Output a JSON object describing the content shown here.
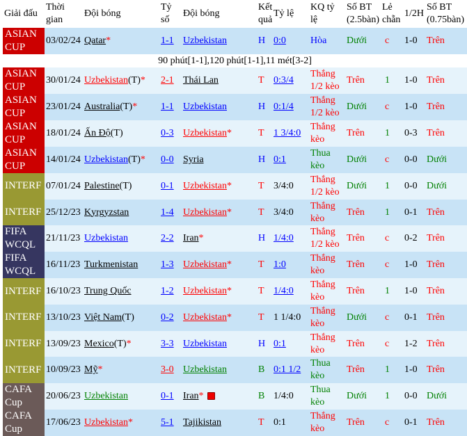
{
  "headers": [
    "Giải đấu",
    "Thời gian",
    "Đội bóng",
    "Tỷ số",
    "Đội bóng",
    "Kết quả",
    "Tỷ lệ",
    "KQ tỷ lệ",
    "Số BT (2.5bàn)",
    "Lẻ chẵn",
    "1/2H",
    "Số BT (0.75bàn)"
  ],
  "colors": {
    "red": "#ff0000",
    "blue": "#0000ff",
    "green": "#008000",
    "black": "#000000"
  },
  "league_colors": {
    "ASIAN CUP": "#cc0000",
    "INTERF": "#999933",
    "FIFA WCQL": "#363660",
    "CAFA Cup": "#6b5a58"
  },
  "note": "90 phút[1-1],120 phút[1-1],11 mét[3-2]",
  "rows": [
    {
      "league": "ASIAN CUP",
      "date": "03/02/24",
      "home": "Qatar",
      "home_suffix": "",
      "home_star": "*",
      "home_color": "black",
      "score": "1-1",
      "score_color": "blue",
      "away": "Uzbekistan",
      "away_star": "",
      "away_color": "blue",
      "result": "H",
      "result_color": "blue",
      "odds": "0:0",
      "odds_link": true,
      "kq": "Hòa",
      "kq_color": "blue",
      "bt": "Dưới",
      "bt_color": "green",
      "lc": "c",
      "lc_color": "red",
      "half": "1-0",
      "bt2": "Trên",
      "bt2_color": "red"
    },
    {
      "league": "ASIAN CUP",
      "date": "30/01/24",
      "home": "Uzbekistan",
      "home_suffix": "(T)",
      "home_star": "*",
      "home_color": "red",
      "score": "2-1",
      "score_color": "red",
      "away": "Thái Lan",
      "away_star": "",
      "away_color": "black",
      "result": "T",
      "result_color": "red",
      "odds": "0:3/4",
      "odds_link": true,
      "kq": "Thắng 1/2 kèo",
      "kq_color": "red",
      "bt": "Trên",
      "bt_color": "red",
      "lc": "1",
      "lc_color": "green",
      "half": "1-0",
      "bt2": "Trên",
      "bt2_color": "red"
    },
    {
      "league": "ASIAN CUP",
      "date": "23/01/24",
      "home": "Australia",
      "home_suffix": "(T)",
      "home_star": "*",
      "home_color": "black",
      "score": "1-1",
      "score_color": "blue",
      "away": "Uzbekistan",
      "away_star": "",
      "away_color": "blue",
      "result": "H",
      "result_color": "blue",
      "odds": "0:1/4",
      "odds_link": true,
      "kq": "Thắng 1/2 kèo",
      "kq_color": "red",
      "bt": "Dưới",
      "bt_color": "green",
      "lc": "c",
      "lc_color": "red",
      "half": "1-0",
      "bt2": "Trên",
      "bt2_color": "red"
    },
    {
      "league": "ASIAN CUP",
      "date": "18/01/24",
      "home": "Ấn Độ",
      "home_suffix": "(T)",
      "home_star": "",
      "home_color": "black",
      "score": "0-3",
      "score_color": "blue",
      "away": "Uzbekistan",
      "away_star": "*",
      "away_color": "red",
      "result": "T",
      "result_color": "red",
      "odds": "1 3/4:0",
      "odds_link": true,
      "kq": "Thắng kèo",
      "kq_color": "red",
      "bt": "Trên",
      "bt_color": "red",
      "lc": "1",
      "lc_color": "green",
      "half": "0-3",
      "bt2": "Trên",
      "bt2_color": "red"
    },
    {
      "league": "ASIAN CUP",
      "date": "14/01/24",
      "home": "Uzbekistan",
      "home_suffix": "(T)",
      "home_star": "*",
      "home_color": "blue",
      "score": "0-0",
      "score_color": "blue",
      "away": "Syria",
      "away_star": "",
      "away_color": "black",
      "result": "H",
      "result_color": "blue",
      "odds": "0:1",
      "odds_link": true,
      "kq": "Thua kèo",
      "kq_color": "green",
      "bt": "Dưới",
      "bt_color": "green",
      "lc": "c",
      "lc_color": "red",
      "half": "0-0",
      "bt2": "Dưới",
      "bt2_color": "green"
    },
    {
      "league": "INTERF",
      "date": "07/01/24",
      "home": "Palestine",
      "home_suffix": "(T)",
      "home_star": "",
      "home_color": "black",
      "score": "0-1",
      "score_color": "blue",
      "away": "Uzbekistan",
      "away_star": "*",
      "away_color": "red",
      "result": "T",
      "result_color": "red",
      "odds": "3/4:0",
      "odds_link": false,
      "kq": "Thắng 1/2 kèo",
      "kq_color": "red",
      "bt": "Dưới",
      "bt_color": "green",
      "lc": "1",
      "lc_color": "green",
      "half": "0-0",
      "bt2": "Dưới",
      "bt2_color": "green"
    },
    {
      "league": "INTERF",
      "date": "25/12/23",
      "home": "Kyrgyzstan",
      "home_suffix": "",
      "home_star": "",
      "home_color": "black",
      "score": "1-4",
      "score_color": "blue",
      "away": "Uzbekistan",
      "away_star": "*",
      "away_color": "red",
      "result": "T",
      "result_color": "red",
      "odds": "3/4:0",
      "odds_link": false,
      "kq": "Thắng kèo",
      "kq_color": "red",
      "bt": "Trên",
      "bt_color": "red",
      "lc": "1",
      "lc_color": "green",
      "half": "0-1",
      "bt2": "Trên",
      "bt2_color": "red"
    },
    {
      "league": "FIFA WCQL",
      "date": "21/11/23",
      "home": "Uzbekistan",
      "home_suffix": "",
      "home_star": "",
      "home_color": "blue",
      "score": "2-2",
      "score_color": "blue",
      "away": "Iran",
      "away_star": "*",
      "away_color": "black",
      "result": "H",
      "result_color": "blue",
      "odds": "1/4:0",
      "odds_link": true,
      "kq": "Thắng 1/2 kèo",
      "kq_color": "red",
      "bt": "Trên",
      "bt_color": "red",
      "lc": "c",
      "lc_color": "red",
      "half": "0-2",
      "bt2": "Trên",
      "bt2_color": "red"
    },
    {
      "league": "FIFA WCQL",
      "date": "16/11/23",
      "home": "Turkmenistan",
      "home_suffix": "",
      "home_star": "",
      "home_color": "black",
      "score": "1-3",
      "score_color": "blue",
      "away": "Uzbekistan",
      "away_star": "*",
      "away_color": "red",
      "result": "T",
      "result_color": "red",
      "odds": "1:0",
      "odds_link": true,
      "kq": "Thắng kèo",
      "kq_color": "red",
      "bt": "Trên",
      "bt_color": "red",
      "lc": "c",
      "lc_color": "red",
      "half": "1-0",
      "bt2": "Trên",
      "bt2_color": "red"
    },
    {
      "league": "INTERF",
      "date": "16/10/23",
      "home": "Trung Quốc",
      "home_suffix": "",
      "home_star": "",
      "home_color": "black",
      "score": "1-2",
      "score_color": "blue",
      "away": "Uzbekistan",
      "away_star": "*",
      "away_color": "red",
      "result": "T",
      "result_color": "red",
      "odds": "1/4:0",
      "odds_link": true,
      "kq": "Thắng kèo",
      "kq_color": "red",
      "bt": "Trên",
      "bt_color": "red",
      "lc": "1",
      "lc_color": "green",
      "half": "1-0",
      "bt2": "Trên",
      "bt2_color": "red"
    },
    {
      "league": "INTERF",
      "date": "13/10/23",
      "home": "Việt Nam",
      "home_suffix": "(T)",
      "home_star": "",
      "home_color": "black",
      "score": "0-2",
      "score_color": "blue",
      "away": "Uzbekistan",
      "away_star": "*",
      "away_color": "red",
      "result": "T",
      "result_color": "red",
      "odds": "1 1/4:0",
      "odds_link": false,
      "kq": "Thắng kèo",
      "kq_color": "red",
      "bt": "Dưới",
      "bt_color": "green",
      "lc": "c",
      "lc_color": "red",
      "half": "0-1",
      "bt2": "Trên",
      "bt2_color": "red"
    },
    {
      "league": "INTERF",
      "date": "13/09/23",
      "home": "Mexico",
      "home_suffix": "(T)",
      "home_star": "*",
      "home_color": "black",
      "score": "3-3",
      "score_color": "blue",
      "away": "Uzbekistan",
      "away_star": "",
      "away_color": "blue",
      "result": "H",
      "result_color": "blue",
      "odds": "0:1",
      "odds_link": true,
      "kq": "Thắng kèo",
      "kq_color": "red",
      "bt": "Trên",
      "bt_color": "red",
      "lc": "c",
      "lc_color": "red",
      "half": "1-2",
      "bt2": "Trên",
      "bt2_color": "red"
    },
    {
      "league": "INTERF",
      "date": "10/09/23",
      "home": "Mỹ",
      "home_suffix": "",
      "home_star": "*",
      "home_color": "black",
      "score": "3-0",
      "score_color": "red",
      "away": "Uzbekistan",
      "away_star": "",
      "away_color": "green",
      "result": "B",
      "result_color": "green",
      "odds": "0:1 1/2",
      "odds_link": true,
      "kq": "Thua kèo",
      "kq_color": "green",
      "bt": "Trên",
      "bt_color": "red",
      "lc": "1",
      "lc_color": "green",
      "half": "1-0",
      "bt2": "Trên",
      "bt2_color": "red"
    },
    {
      "league": "CAFA Cup",
      "date": "20/06/23",
      "home": "Uzbekistan",
      "home_suffix": "",
      "home_star": "",
      "home_color": "green",
      "score": "0-1",
      "score_color": "blue",
      "away": "Iran",
      "away_star": "*",
      "away_color": "black",
      "away_card": true,
      "result": "B",
      "result_color": "green",
      "odds": "1/4:0",
      "odds_link": false,
      "kq": "Thua kèo",
      "kq_color": "green",
      "bt": "Dưới",
      "bt_color": "green",
      "lc": "1",
      "lc_color": "green",
      "half": "0-0",
      "bt2": "Dưới",
      "bt2_color": "green"
    },
    {
      "league": "CAFA Cup",
      "date": "17/06/23",
      "home": "Uzbekistan",
      "home_suffix": "",
      "home_star": "*",
      "home_color": "red",
      "score": "5-1",
      "score_color": "blue",
      "away": "Tajikistan",
      "away_star": "",
      "away_color": "black",
      "result": "T",
      "result_color": "red",
      "odds": "0:1",
      "odds_link": false,
      "kq": "Thắng kèo",
      "kq_color": "red",
      "bt": "Trên",
      "bt_color": "red",
      "lc": "c",
      "lc_color": "red",
      "half": "0-1",
      "bt2": "Trên",
      "bt2_color": "red"
    }
  ]
}
